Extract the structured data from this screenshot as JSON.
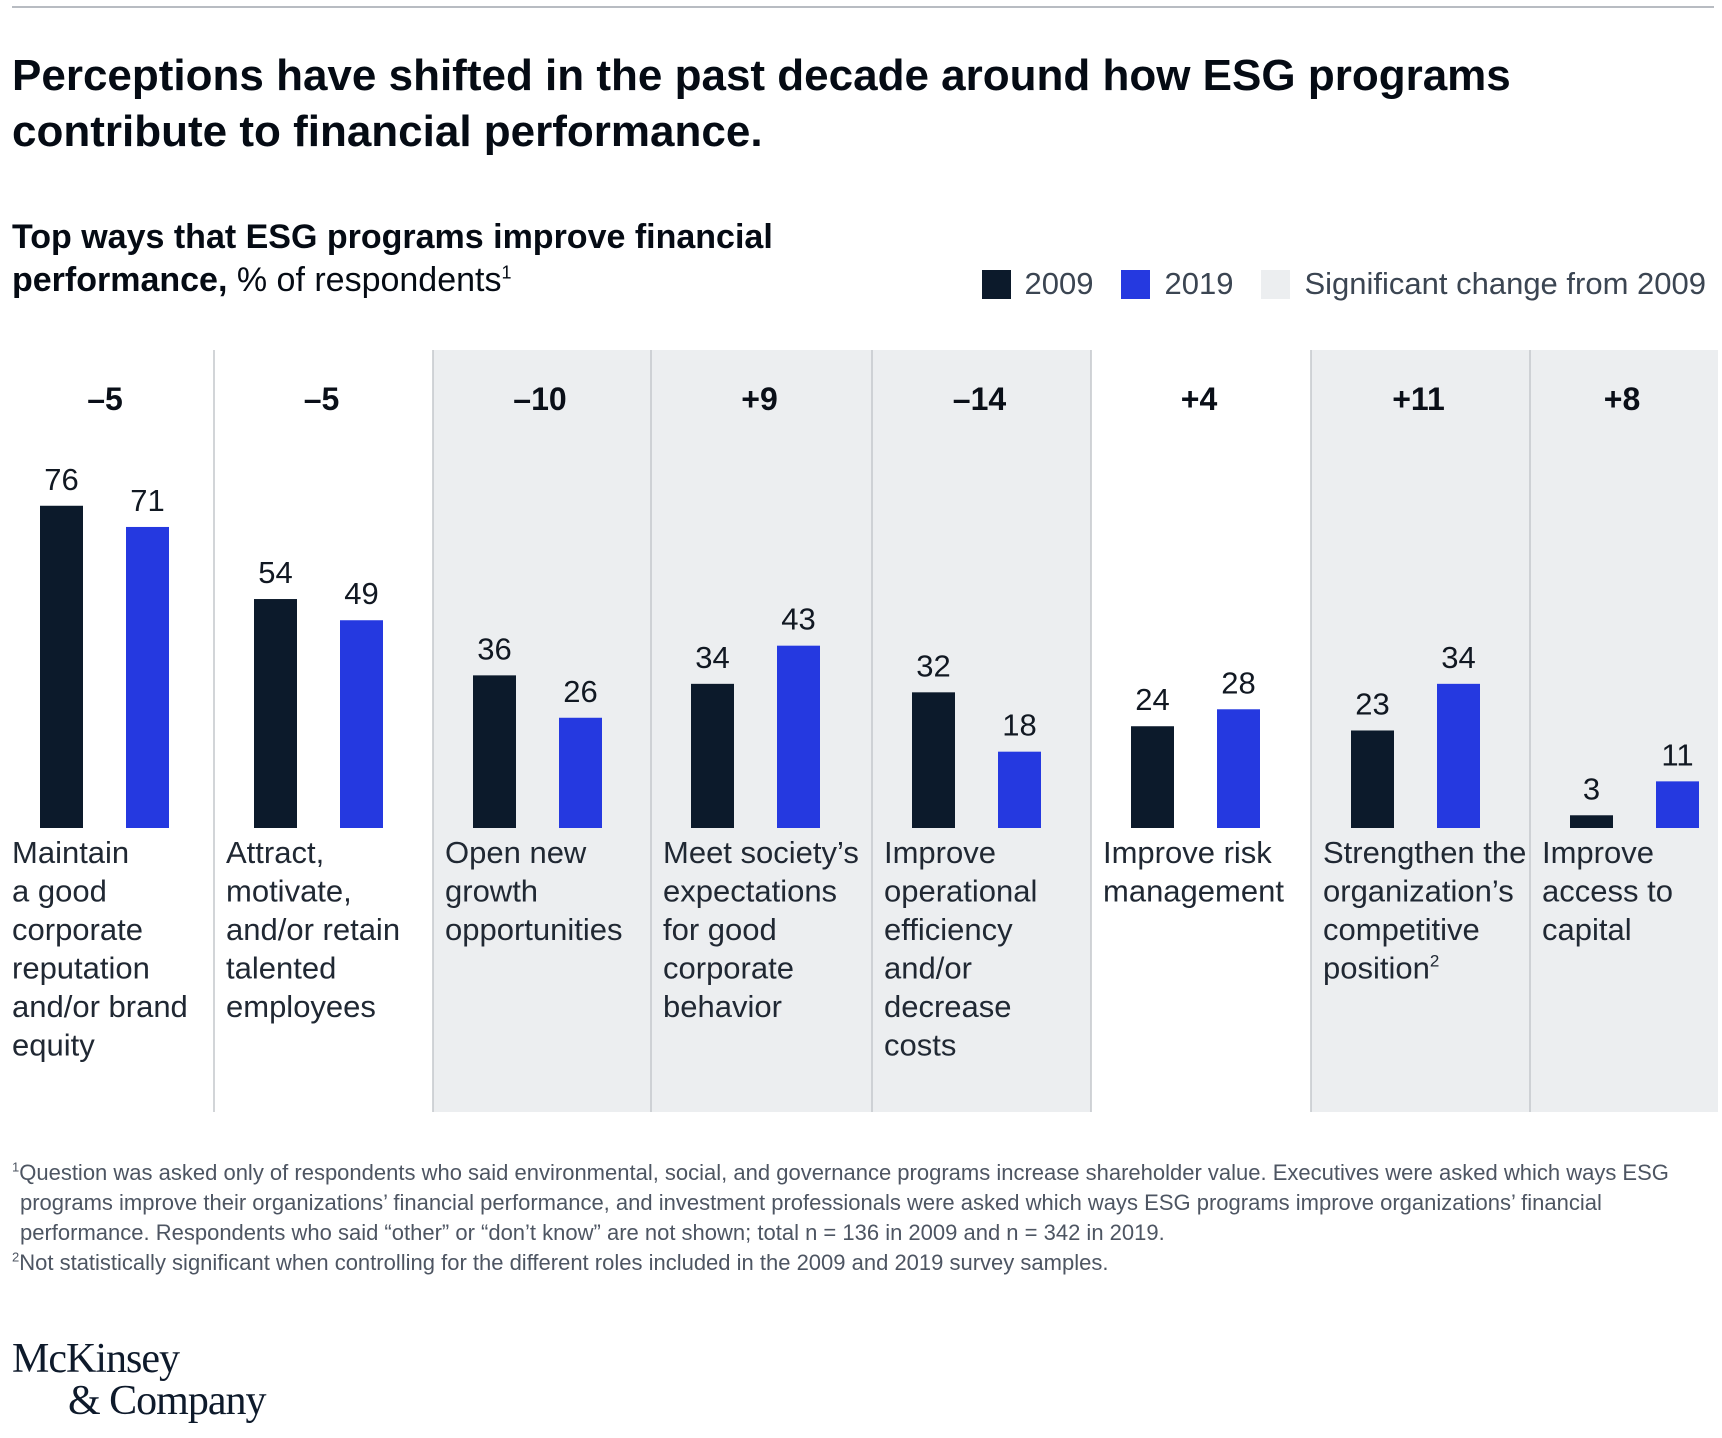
{
  "headline": "Perceptions have shifted in the past decade around how ESG programs contribute to financial performance.",
  "subtitle": {
    "bold": "Top ways that ESG programs improve financial performance,",
    "normal": " % of respondents",
    "sup": "1"
  },
  "legend": {
    "items": [
      {
        "label": "2009",
        "color": "#0c1a2b"
      },
      {
        "label": "2019",
        "color": "#2539e0"
      },
      {
        "label": "Significant change from 2009",
        "color": "#eceef0"
      }
    ]
  },
  "chart_data": {
    "type": "bar",
    "ylim": [
      0,
      80
    ],
    "colors": {
      "2009": "#0c1a2b",
      "2019": "#2539e0",
      "highlight": "#eceef0"
    },
    "categories": [
      {
        "label": [
          "Maintain",
          "a good",
          "corporate",
          "reputation",
          "and/or brand",
          "equity"
        ],
        "change": "–5",
        "significant": false
      },
      {
        "label": [
          "Attract,",
          "motivate,",
          "and/or retain",
          "talented",
          "employees"
        ],
        "change": "–5",
        "significant": false
      },
      {
        "label": [
          "Open new",
          "growth",
          "opportunities"
        ],
        "change": "–10",
        "significant": true
      },
      {
        "label": [
          "Meet society’s",
          "expectations",
          "for good",
          "corporate",
          "behavior"
        ],
        "change": "+9",
        "significant": true
      },
      {
        "label": [
          "Improve",
          "operational",
          "efficiency",
          "and/or",
          "decrease",
          "costs"
        ],
        "change": "–14",
        "significant": true
      },
      {
        "label": [
          "Improve risk",
          "management"
        ],
        "change": "+4",
        "significant": false
      },
      {
        "label": [
          "Strengthen the",
          "organization’s",
          "competitive",
          "position"
        ],
        "label_sup": "2",
        "change": "+11",
        "significant": true
      },
      {
        "label": [
          "Improve",
          "access to",
          "capital"
        ],
        "change": "+8",
        "significant": true
      }
    ],
    "series": [
      {
        "name": "2009",
        "values": [
          76,
          54,
          36,
          34,
          32,
          24,
          23,
          3
        ]
      },
      {
        "name": "2019",
        "values": [
          71,
          49,
          26,
          43,
          18,
          28,
          34,
          11
        ]
      }
    ]
  },
  "footnotes": [
    {
      "sup": "1",
      "text": "Question was asked only of respondents who said environmental, social, and governance programs increase shareholder value. Executives were asked which ways ESG programs improve their organizations’ financial performance, and investment professionals were asked which ways ESG programs improve organizations’ financial performance. Respondents who said “other” or “don’t know” are not shown; total n = 136 in 2009 and n = 342 in 2019."
    },
    {
      "sup": "2",
      "text": "Not statistically significant when controlling for the different roles included in the 2009 and 2019 survey samples."
    }
  ],
  "logo": {
    "line1": "McKinsey",
    "line2": "& Company"
  }
}
